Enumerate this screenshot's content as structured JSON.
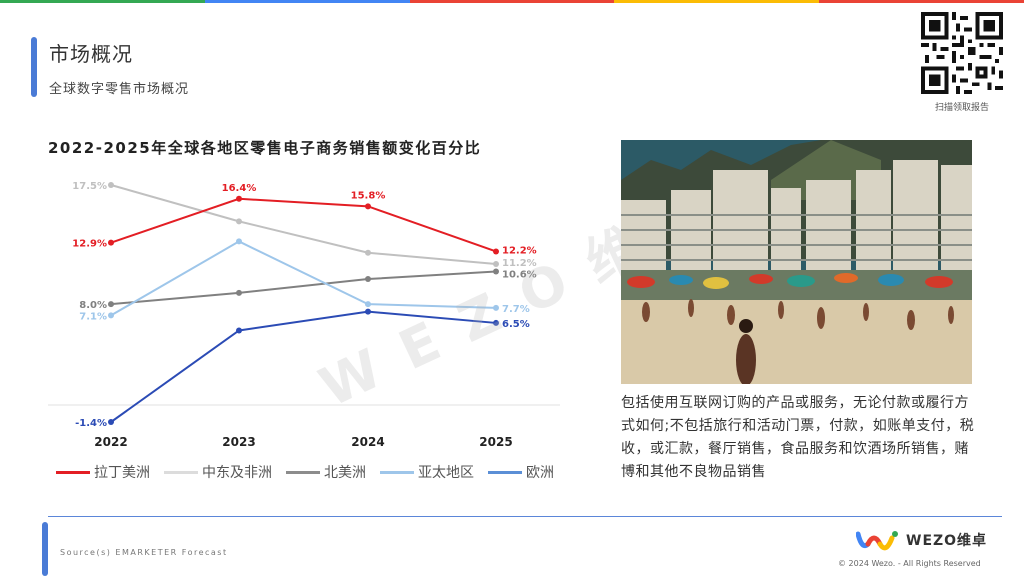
{
  "header": {
    "title": "市场概况",
    "subtitle": "全球数字零售市场概况",
    "qr_caption": "扫描领取报告"
  },
  "topbar_colors": [
    "#34a853",
    "#4285f4",
    "#ea4335",
    "#fbbc05",
    "#ea4335"
  ],
  "chart_data": {
    "type": "line",
    "title": "2022-2025年全球各地区零售电子商务销售额变化百分比",
    "categories": [
      "2022",
      "2023",
      "2024",
      "2025"
    ],
    "series": [
      {
        "name": "拉丁美洲",
        "color": "#e31e24",
        "values": [
          12.9,
          16.4,
          15.8,
          12.2
        ],
        "labels": [
          "12.9%",
          "16.4%",
          "15.8%",
          "12.2%"
        ]
      },
      {
        "name": "中东及非洲",
        "color": "#c0c0c0",
        "values": [
          17.5,
          14.6,
          12.1,
          11.2
        ],
        "labels": [
          "17.5%",
          null,
          null,
          "11.2%"
        ]
      },
      {
        "name": "北美洲",
        "color": "#808080",
        "values": [
          8.0,
          8.9,
          10.0,
          10.6
        ],
        "labels": [
          "8.0%",
          null,
          null,
          "10.6%"
        ]
      },
      {
        "name": "亚太地区",
        "color": "#9ec6ea",
        "values": [
          7.1,
          13.0,
          8.0,
          7.7
        ],
        "labels": [
          "7.1%",
          null,
          null,
          "7.7%"
        ]
      },
      {
        "name": "欧洲",
        "color": "#2b4bb5",
        "values": [
          -1.4,
          5.9,
          7.4,
          6.5
        ],
        "labels": [
          "-1.4%",
          null,
          null,
          "6.5%"
        ]
      }
    ],
    "legend": [
      {
        "name": "拉丁美洲",
        "color": "#e31e24"
      },
      {
        "name": "中东及非洲",
        "color": "#dcdcdc"
      },
      {
        "name": "北美洲",
        "color": "#8c8c8c"
      },
      {
        "name": "亚太地区",
        "color": "#9ec6ea"
      },
      {
        "name": "欧洲",
        "color": "#5b8fd6"
      }
    ],
    "ylim": [
      -1.4,
      17.5
    ],
    "grid": false,
    "legend_position": "bottom"
  },
  "description": "包括使用互联网订购的产品或服务，无论付款或履行方式如何;不包括旅行和活动门票，付款，如账单支付，税收，或汇款，餐厅销售，食品服务和饮酒场所销售，赌博和其他不良物品销售",
  "watermark": "WEZO维卓",
  "footer": {
    "source": "Source(s)  EMARKETER Forecast",
    "logo_text": "WEZO维卓",
    "copyright": "© 2024 Wezo. - All Rights Reserved"
  }
}
